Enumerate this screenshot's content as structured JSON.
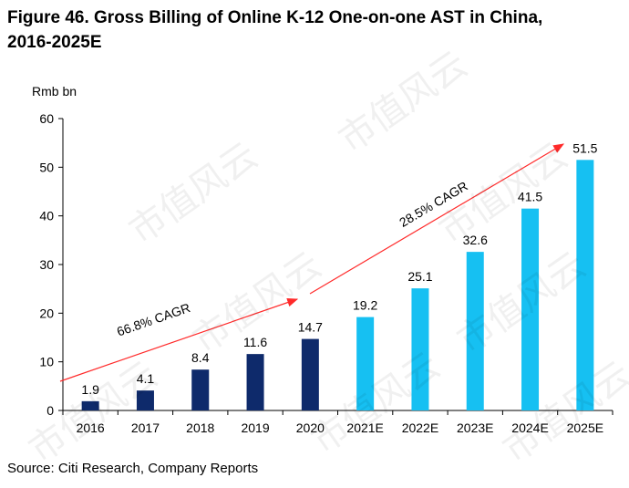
{
  "figure": {
    "title_line1": "Figure 46. Gross Billing of Online K-12 One-on-one AST in China,",
    "title_line2": "2016-2025E",
    "source": "Source: Citi Research, Company Reports",
    "watermark": "市值风云"
  },
  "colors": {
    "actual_bar": "#0e2a6b",
    "estimate_bar": "#16c0f2",
    "cagr_arrow": "#ff2a2a",
    "axis": "#000000"
  },
  "chart_data": {
    "type": "bar",
    "title": "Figure 46. Gross Billing of Online K-12 One-on-one AST in China, 2016-2025E",
    "ylabel": "Rmb bn",
    "xlabel": "",
    "ylim": [
      0,
      60
    ],
    "yticks": [
      0,
      10,
      20,
      30,
      40,
      50,
      60
    ],
    "ytick_labels": [
      "0",
      "10",
      "20",
      "30",
      "40",
      "50",
      "60"
    ],
    "categories": [
      "2016",
      "2017",
      "2018",
      "2019",
      "2020",
      "2021E",
      "2022E",
      "2023E",
      "2024E",
      "2025E"
    ],
    "values": [
      1.9,
      4.1,
      8.4,
      11.6,
      14.7,
      19.2,
      25.1,
      32.6,
      41.5,
      51.5
    ],
    "value_labels": [
      "1.9",
      "4.1",
      "8.4",
      "11.6",
      "14.7",
      "19.2",
      "25.1",
      "32.6",
      "41.5",
      "51.5"
    ],
    "bar_type": [
      "actual",
      "actual",
      "actual",
      "actual",
      "actual",
      "estimate",
      "estimate",
      "estimate",
      "estimate",
      "estimate"
    ],
    "annotations": [
      {
        "text": "66.8% CAGR",
        "from_category": "2016",
        "to_category": "2020"
      },
      {
        "text": "28.5% CAGR",
        "from_category": "2020",
        "to_category": "2025E"
      }
    ],
    "grid": false,
    "legend": "none"
  }
}
